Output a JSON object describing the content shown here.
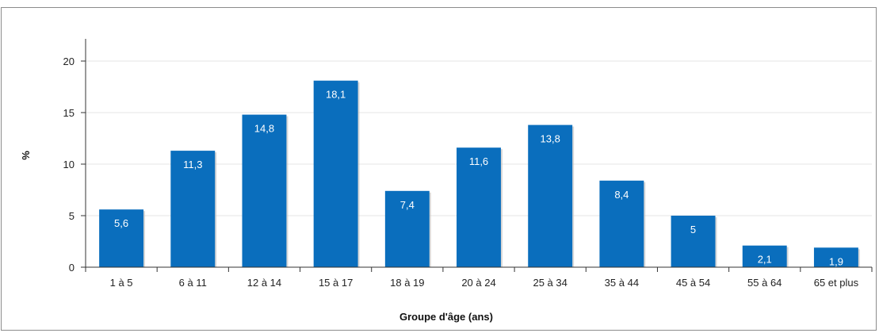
{
  "chart_data": {
    "type": "bar",
    "title": "",
    "xlabel": "Groupe d'âge (ans)",
    "ylabel": "%",
    "categories": [
      "1 à 5",
      "6 à 11",
      "12 à 14",
      "15 à 17",
      "18 à 19",
      "20 à 24",
      "25 à 34",
      "35 à 44",
      "45 à 54",
      "55 à 64",
      "65 et plus"
    ],
    "values": [
      5.6,
      11.3,
      14.8,
      18.1,
      7.4,
      11.6,
      13.8,
      8.4,
      5,
      2.1,
      1.9
    ],
    "value_labels": [
      "5,6",
      "11,3",
      "14,8",
      "18,1",
      "7,4",
      "11,6",
      "13,8",
      "8,4",
      "5",
      "2,1",
      "1,9"
    ],
    "ylim": [
      0,
      20
    ],
    "yticks": [
      0,
      5,
      10,
      15,
      20
    ],
    "grid": true,
    "legend": "none",
    "bar_color": "#0a6ebd",
    "grid_color": "#e6e6e6"
  }
}
